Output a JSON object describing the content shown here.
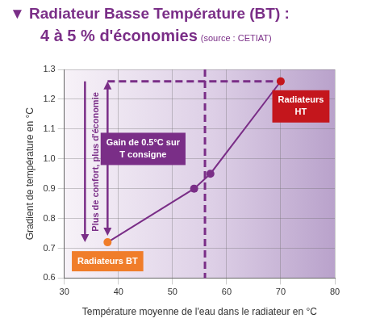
{
  "chart_data": {
    "type": "line",
    "title": "▼ Radiateur Basse Température (BT) :",
    "subtitle": "4 à 5 % d'économies",
    "source": "(source : CETIAT)",
    "x_label": "Température moyenne de l'eau dans le radiateur en °C",
    "y_label": "Gradient de température en °C",
    "x": [
      38,
      54,
      57,
      70
    ],
    "values": [
      0.72,
      0.9,
      0.95,
      1.26
    ],
    "color": "#7a2e87",
    "colors": [
      "#f07d2a",
      "#7a2e87",
      "#7a2e87",
      "#c4161c"
    ],
    "marker": "circle",
    "point_labels": [
      "Radiateurs BT",
      null,
      null,
      "Radiateurs HT"
    ],
    "annotations": [
      "Plus de confort, plus d'économie",
      "Gain de 0.5°C sur T consigne"
    ],
    "vertical_line": {
      "x": 56,
      "line_style": "dashed"
    },
    "xlim": [
      30,
      80
    ],
    "ylim": [
      0.6,
      1.3
    ],
    "xticks": [
      30,
      40,
      50,
      60,
      70,
      80
    ],
    "yticks": [
      0.6,
      0.7,
      0.8,
      0.9,
      {
        "value": 1,
        "label": "1.0"
      },
      1.1,
      1.2,
      1.3
    ],
    "grid": true
  }
}
